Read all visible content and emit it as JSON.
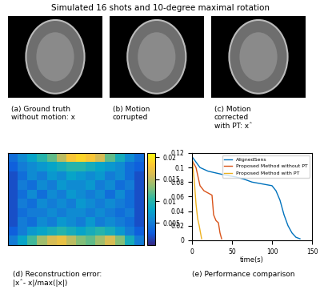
{
  "title": "Simulated 16 shots and 10-degree maximal rotation",
  "images": [
    {
      "caption": [
        "(a) Ground truth",
        "without motion: x"
      ]
    },
    {
      "caption": [
        "(b) Motion",
        "corrupted"
      ]
    },
    {
      "caption": [
        "(c) Motion",
        "corrected",
        "with PT: xˆ"
      ]
    }
  ],
  "chart_data": [
    {
      "type": "heatmap",
      "caption": [
        "(d) Reconstruction error:",
        "|xˆ- x|/max(|x|)"
      ],
      "tick_labels": false,
      "cells": [
        [
          0.004,
          0.006,
          0.008,
          0.01,
          0.012,
          0.015,
          0.018,
          0.019,
          0.018,
          0.016,
          0.012,
          0.009,
          0.006,
          0.004
        ],
        [
          0.003,
          0.005,
          0.006,
          0.007,
          0.008,
          0.009,
          0.01,
          0.01,
          0.009,
          0.008,
          0.007,
          0.006,
          0.004,
          0.003
        ],
        [
          0.002,
          0.004,
          0.006,
          0.005,
          0.007,
          0.006,
          0.008,
          0.007,
          0.006,
          0.007,
          0.005,
          0.006,
          0.004,
          0.002
        ],
        [
          0.002,
          0.005,
          0.004,
          0.006,
          0.005,
          0.007,
          0.006,
          0.006,
          0.007,
          0.005,
          0.006,
          0.004,
          0.005,
          0.002
        ],
        [
          0.002,
          0.004,
          0.006,
          0.004,
          0.006,
          0.005,
          0.007,
          0.006,
          0.005,
          0.006,
          0.004,
          0.006,
          0.004,
          0.002
        ],
        [
          0.002,
          0.005,
          0.004,
          0.006,
          0.005,
          0.006,
          0.005,
          0.007,
          0.006,
          0.005,
          0.006,
          0.005,
          0.004,
          0.002
        ],
        [
          0.002,
          0.004,
          0.005,
          0.005,
          0.006,
          0.005,
          0.006,
          0.006,
          0.005,
          0.006,
          0.005,
          0.004,
          0.005,
          0.002
        ],
        [
          0.002,
          0.005,
          0.004,
          0.006,
          0.005,
          0.007,
          0.006,
          0.005,
          0.007,
          0.005,
          0.006,
          0.005,
          0.004,
          0.002
        ],
        [
          0.003,
          0.005,
          0.007,
          0.008,
          0.009,
          0.01,
          0.009,
          0.008,
          0.009,
          0.01,
          0.009,
          0.007,
          0.005,
          0.003
        ],
        [
          0.005,
          0.008,
          0.011,
          0.014,
          0.016,
          0.017,
          0.015,
          0.013,
          0.012,
          0.014,
          0.016,
          0.013,
          0.009,
          0.005
        ]
      ],
      "colorbar_range": [
        0,
        0.021
      ],
      "colorbar_ticks": [
        0.005,
        0.01,
        0.015,
        0.02
      ]
    },
    {
      "type": "line",
      "caption": [
        "(e) Performance comparison"
      ],
      "x_label": "time(s)",
      "xlim": [
        0,
        150
      ],
      "xticks": [
        0,
        50,
        100,
        150
      ],
      "ylim": [
        0,
        0.12
      ],
      "yticks": [
        0,
        0.02,
        0.04,
        0.06,
        0.08,
        0.1,
        0.12
      ],
      "legend": "upper right",
      "series": [
        {
          "name": "AlignedSens",
          "color": "#0072bd",
          "x": [
            0,
            10,
            20,
            40,
            55,
            65,
            75,
            90,
            100,
            105,
            110,
            115,
            120,
            125,
            130,
            135
          ],
          "values": [
            0.115,
            0.1,
            0.095,
            0.09,
            0.087,
            0.084,
            0.08,
            0.077,
            0.075,
            0.068,
            0.055,
            0.035,
            0.02,
            0.01,
            0.004,
            0.002
          ]
        },
        {
          "name": "Proposed Method without PT",
          "color": "#d95319",
          "x": [
            0,
            5,
            10,
            15,
            20,
            25,
            27,
            30,
            33,
            35,
            37
          ],
          "values": [
            0.11,
            0.1,
            0.075,
            0.068,
            0.065,
            0.062,
            0.035,
            0.027,
            0.024,
            0.01,
            0.002
          ]
        },
        {
          "name": "Proposed Method with PT",
          "color": "#edb120",
          "x": [
            0,
            3,
            5,
            7,
            9,
            11,
            12
          ],
          "values": [
            0.115,
            0.08,
            0.05,
            0.03,
            0.02,
            0.008,
            0.002
          ]
        }
      ]
    }
  ]
}
